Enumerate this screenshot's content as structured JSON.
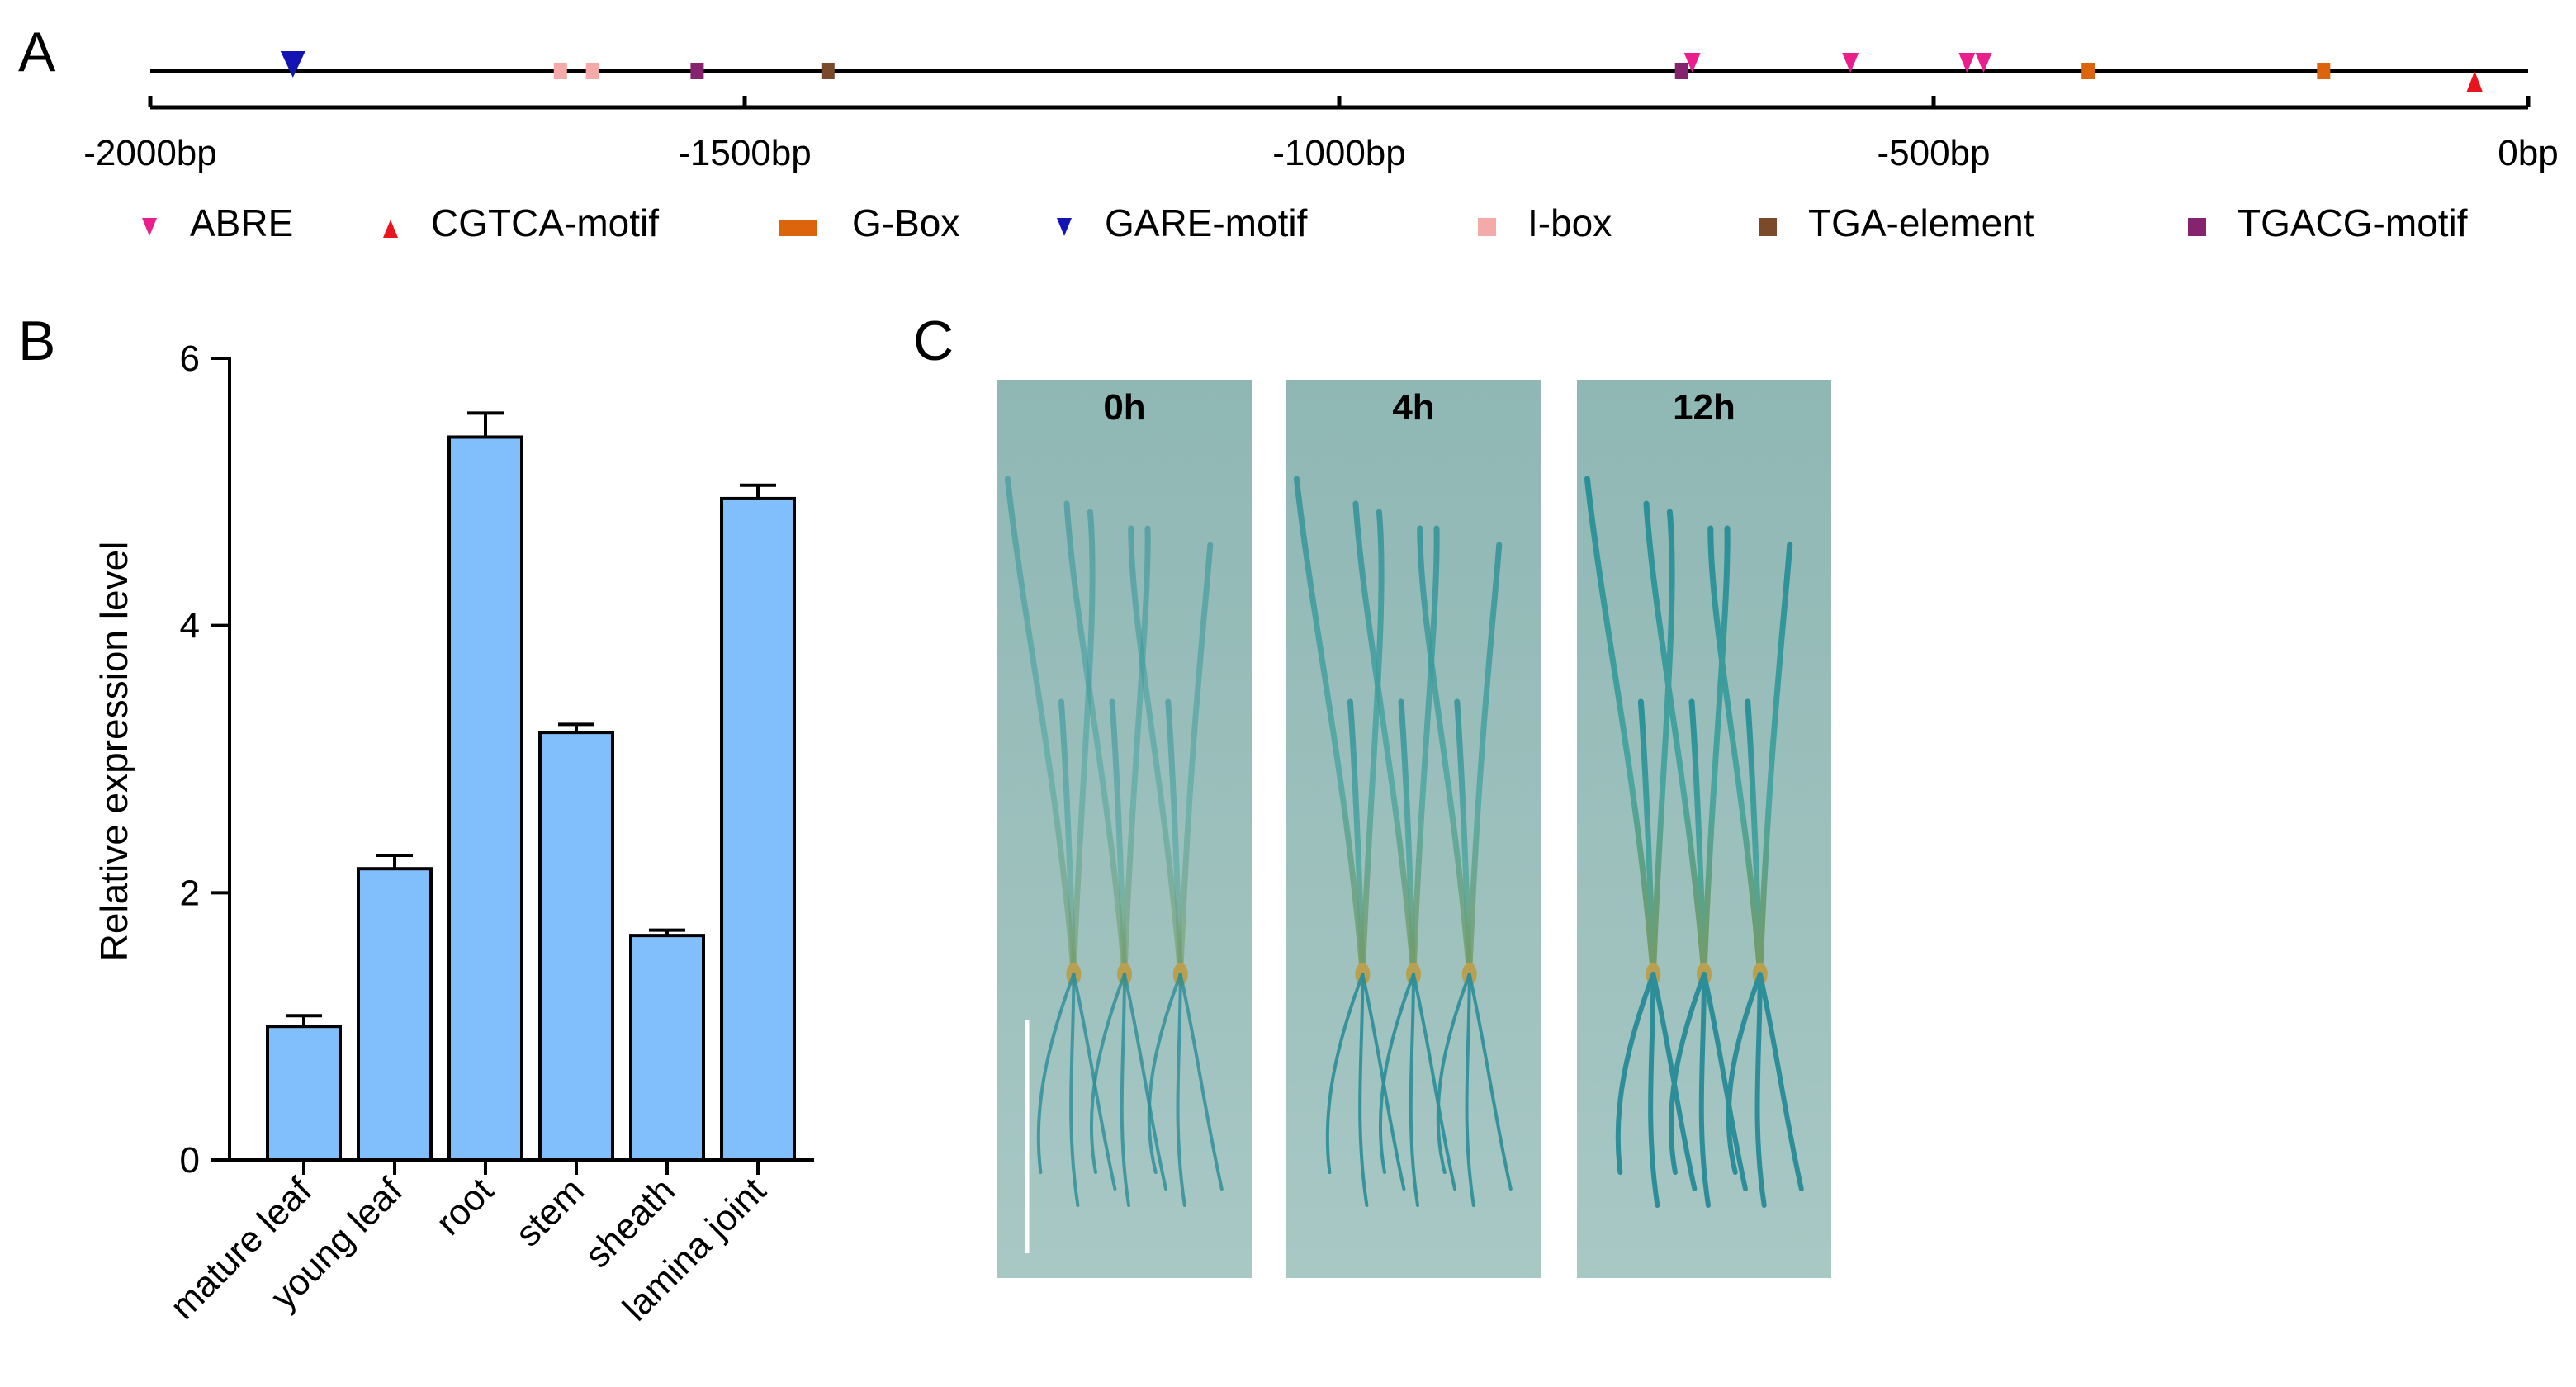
{
  "panels": {
    "a": {
      "letter": "A",
      "axis_ticks": [
        {
          "bp": -2000,
          "label": "-2000bp"
        },
        {
          "bp": -1500,
          "label": "-1500bp"
        },
        {
          "bp": -1000,
          "label": "-1000bp"
        },
        {
          "bp": -500,
          "label": "-500bp"
        },
        {
          "bp": 0,
          "label": "0bp"
        }
      ],
      "elements": [
        {
          "type": "GARE-motif",
          "bp": -1880,
          "shape": "triangle-down-large"
        },
        {
          "type": "I-box",
          "bp": -1655,
          "shape": "square"
        },
        {
          "type": "I-box",
          "bp": -1628,
          "shape": "square"
        },
        {
          "type": "TGACG-motif",
          "bp": -1540,
          "shape": "square"
        },
        {
          "type": "TGA-element",
          "bp": -1430,
          "shape": "square"
        },
        {
          "type": "TGACG-motif",
          "bp": -712,
          "shape": "square"
        },
        {
          "type": "ABRE",
          "bp": -703,
          "shape": "triangle-down"
        },
        {
          "type": "ABRE",
          "bp": -570,
          "shape": "triangle-down"
        },
        {
          "type": "ABRE",
          "bp": -472,
          "shape": "triangle-down"
        },
        {
          "type": "ABRE",
          "bp": -458,
          "shape": "triangle-down"
        },
        {
          "type": "G-Box",
          "bp": -370,
          "shape": "square"
        },
        {
          "type": "G-Box",
          "bp": -172,
          "shape": "square"
        },
        {
          "type": "CGTCA-motif",
          "bp": -45,
          "shape": "triangle-up"
        }
      ],
      "legend": [
        {
          "label": "ABRE",
          "color": "#ea1e8c",
          "shape": "triangle-down"
        },
        {
          "label": "CGTCA-motif",
          "color": "#e8141e",
          "shape": "triangle-up"
        },
        {
          "label": "G-Box",
          "color": "#dc650b",
          "shape": "rect"
        },
        {
          "label": "GARE-motif",
          "color": "#1414b4",
          "shape": "triangle-down"
        },
        {
          "label": "I-box",
          "color": "#f5aaaa",
          "shape": "square"
        },
        {
          "label": "TGA-element",
          "color": "#7b4a2a",
          "shape": "square"
        },
        {
          "label": "TGACG-motif",
          "color": "#86236f",
          "shape": "square"
        }
      ]
    },
    "b": {
      "letter": "B"
    },
    "c": {
      "letter": "C",
      "photos": [
        {
          "time_label": "0h"
        },
        {
          "time_label": "4h"
        },
        {
          "time_label": "12h"
        }
      ]
    }
  },
  "chart_data": {
    "type": "bar",
    "title": "",
    "xlabel": "",
    "ylabel": "Relative expression level",
    "ylim": [
      0,
      6
    ],
    "yticks": [
      0,
      2,
      4,
      6
    ],
    "categories": [
      "mature leaf",
      "young leaf",
      "root",
      "stem",
      "sheath",
      "lamina joint"
    ],
    "values": [
      1.0,
      2.18,
      5.41,
      3.2,
      1.68,
      4.95
    ],
    "errors": [
      0.08,
      0.1,
      0.18,
      0.06,
      0.04,
      0.1
    ],
    "bar_color": "#80bffb"
  }
}
